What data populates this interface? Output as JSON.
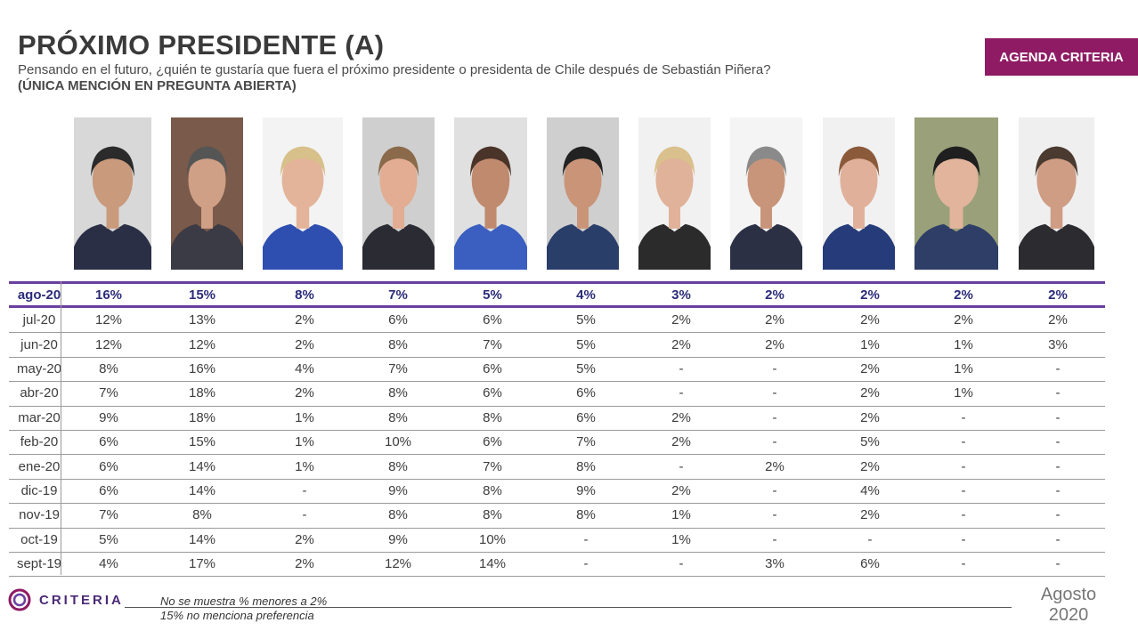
{
  "header": {
    "title": "PRÓXIMO PRESIDENTE (A)",
    "subtitle": "Pensando en el futuro, ¿quién te gustaría que fuera el próximo presidente o presidenta de Chile después de Sebastián Piñera?",
    "subtitle2": "(ÚNICA MENCIÓN EN PREGUNTA ABIERTA)",
    "badge": "AGENDA CRITERIA"
  },
  "colors": {
    "badge": "#8e1b63",
    "highlight_row_border": "#6a3fa0",
    "highlight_text": "#2c2c7a"
  },
  "chart_data": {
    "type": "table",
    "columns": [
      "c1",
      "c2",
      "c3",
      "c4",
      "c5",
      "c6",
      "c7",
      "c8",
      "c9",
      "c10",
      "c11"
    ],
    "rows": [
      {
        "month": "ago-20",
        "values": [
          "16%",
          "15%",
          "8%",
          "7%",
          "5%",
          "4%",
          "3%",
          "2%",
          "2%",
          "2%",
          "2%"
        ]
      },
      {
        "month": "jul-20",
        "values": [
          "12%",
          "13%",
          "2%",
          "6%",
          "6%",
          "5%",
          "2%",
          "2%",
          "2%",
          "2%",
          "2%"
        ]
      },
      {
        "month": "jun-20",
        "values": [
          "12%",
          "12%",
          "2%",
          "8%",
          "7%",
          "5%",
          "2%",
          "2%",
          "1%",
          "1%",
          "3%"
        ]
      },
      {
        "month": "may-20",
        "values": [
          "8%",
          "16%",
          "4%",
          "7%",
          "6%",
          "5%",
          "-",
          "-",
          "2%",
          "1%",
          "-"
        ]
      },
      {
        "month": "abr-20",
        "values": [
          "7%",
          "18%",
          "2%",
          "8%",
          "6%",
          "6%",
          "-",
          "-",
          "2%",
          "1%",
          "-"
        ]
      },
      {
        "month": "mar-20",
        "values": [
          "9%",
          "18%",
          "1%",
          "8%",
          "8%",
          "6%",
          "2%",
          "-",
          "2%",
          "-",
          "-"
        ]
      },
      {
        "month": "feb-20",
        "values": [
          "6%",
          "15%",
          "1%",
          "10%",
          "6%",
          "7%",
          "2%",
          "-",
          "5%",
          "-",
          "-"
        ]
      },
      {
        "month": "ene-20",
        "values": [
          "6%",
          "14%",
          "1%",
          "8%",
          "7%",
          "8%",
          "-",
          "2%",
          "2%",
          "-",
          "-"
        ]
      },
      {
        "month": "dic-19",
        "values": [
          "6%",
          "14%",
          "-",
          "9%",
          "8%",
          "9%",
          "2%",
          "-",
          "4%",
          "-",
          "-"
        ]
      },
      {
        "month": "nov-19",
        "values": [
          "7%",
          "8%",
          "-",
          "8%",
          "8%",
          "8%",
          "1%",
          "-",
          "2%",
          "-",
          "-"
        ]
      },
      {
        "month": "oct-19",
        "values": [
          "5%",
          "14%",
          "2%",
          "9%",
          "10%",
          "-",
          "1%",
          "-",
          "-",
          "-",
          "-"
        ]
      },
      {
        "month": "sept-19",
        "values": [
          "4%",
          "17%",
          "2%",
          "12%",
          "14%",
          "-",
          "-",
          "3%",
          "6%",
          "-",
          "-"
        ]
      }
    ]
  },
  "photos": [
    {
      "icon": "portrait-photo-1",
      "bg": "#d8d8d8",
      "suit": "#2a2f45",
      "hair": "#2b2b2b",
      "skin": "#c99a7c"
    },
    {
      "icon": "portrait-photo-2",
      "bg": "#7a5a4a",
      "suit": "#3b3b45",
      "hair": "#555555",
      "skin": "#cf9f86"
    },
    {
      "icon": "portrait-photo-3",
      "bg": "#f3f3f3",
      "suit": "#2f4fb0",
      "hair": "#d8c08a",
      "skin": "#e3b49a"
    },
    {
      "icon": "portrait-photo-4",
      "bg": "#cfcfcf",
      "suit": "#2b2b33",
      "hair": "#8a6a4a",
      "skin": "#e2ad92"
    },
    {
      "icon": "portrait-photo-5",
      "bg": "#e0e0e0",
      "suit": "#3a5fc0",
      "hair": "#4a3328",
      "skin": "#c08a6e"
    },
    {
      "icon": "portrait-photo-6",
      "bg": "#cfcfcf",
      "suit": "#2a3e6a",
      "hair": "#222222",
      "skin": "#c99478"
    },
    {
      "icon": "portrait-photo-7",
      "bg": "#f1f1f1",
      "suit": "#2b2b2b",
      "hair": "#d9c08c",
      "skin": "#e0b29a"
    },
    {
      "icon": "portrait-photo-8",
      "bg": "#f4f4f4",
      "suit": "#2b3044",
      "hair": "#8a8a8a",
      "skin": "#c8957a"
    },
    {
      "icon": "portrait-photo-9",
      "bg": "#f1f1f1",
      "suit": "#263c7a",
      "hair": "#8a5a3a",
      "skin": "#e0b09a"
    },
    {
      "icon": "portrait-photo-10",
      "bg": "#9aa07a",
      "suit": "#2e3e66",
      "hair": "#1f1f1f",
      "skin": "#e2b49c"
    },
    {
      "icon": "portrait-photo-11",
      "bg": "#efefef",
      "suit": "#2b2b30",
      "hair": "#4a3a30",
      "skin": "#cf9c84"
    }
  ],
  "footer": {
    "brand": "CRITERIA",
    "note1": "No se muestra % menores a 2%",
    "note2": "15% no menciona preferencia",
    "date_month": "Agosto",
    "date_year": "2020",
    "logo_icon": "criteria-logo-icon"
  }
}
